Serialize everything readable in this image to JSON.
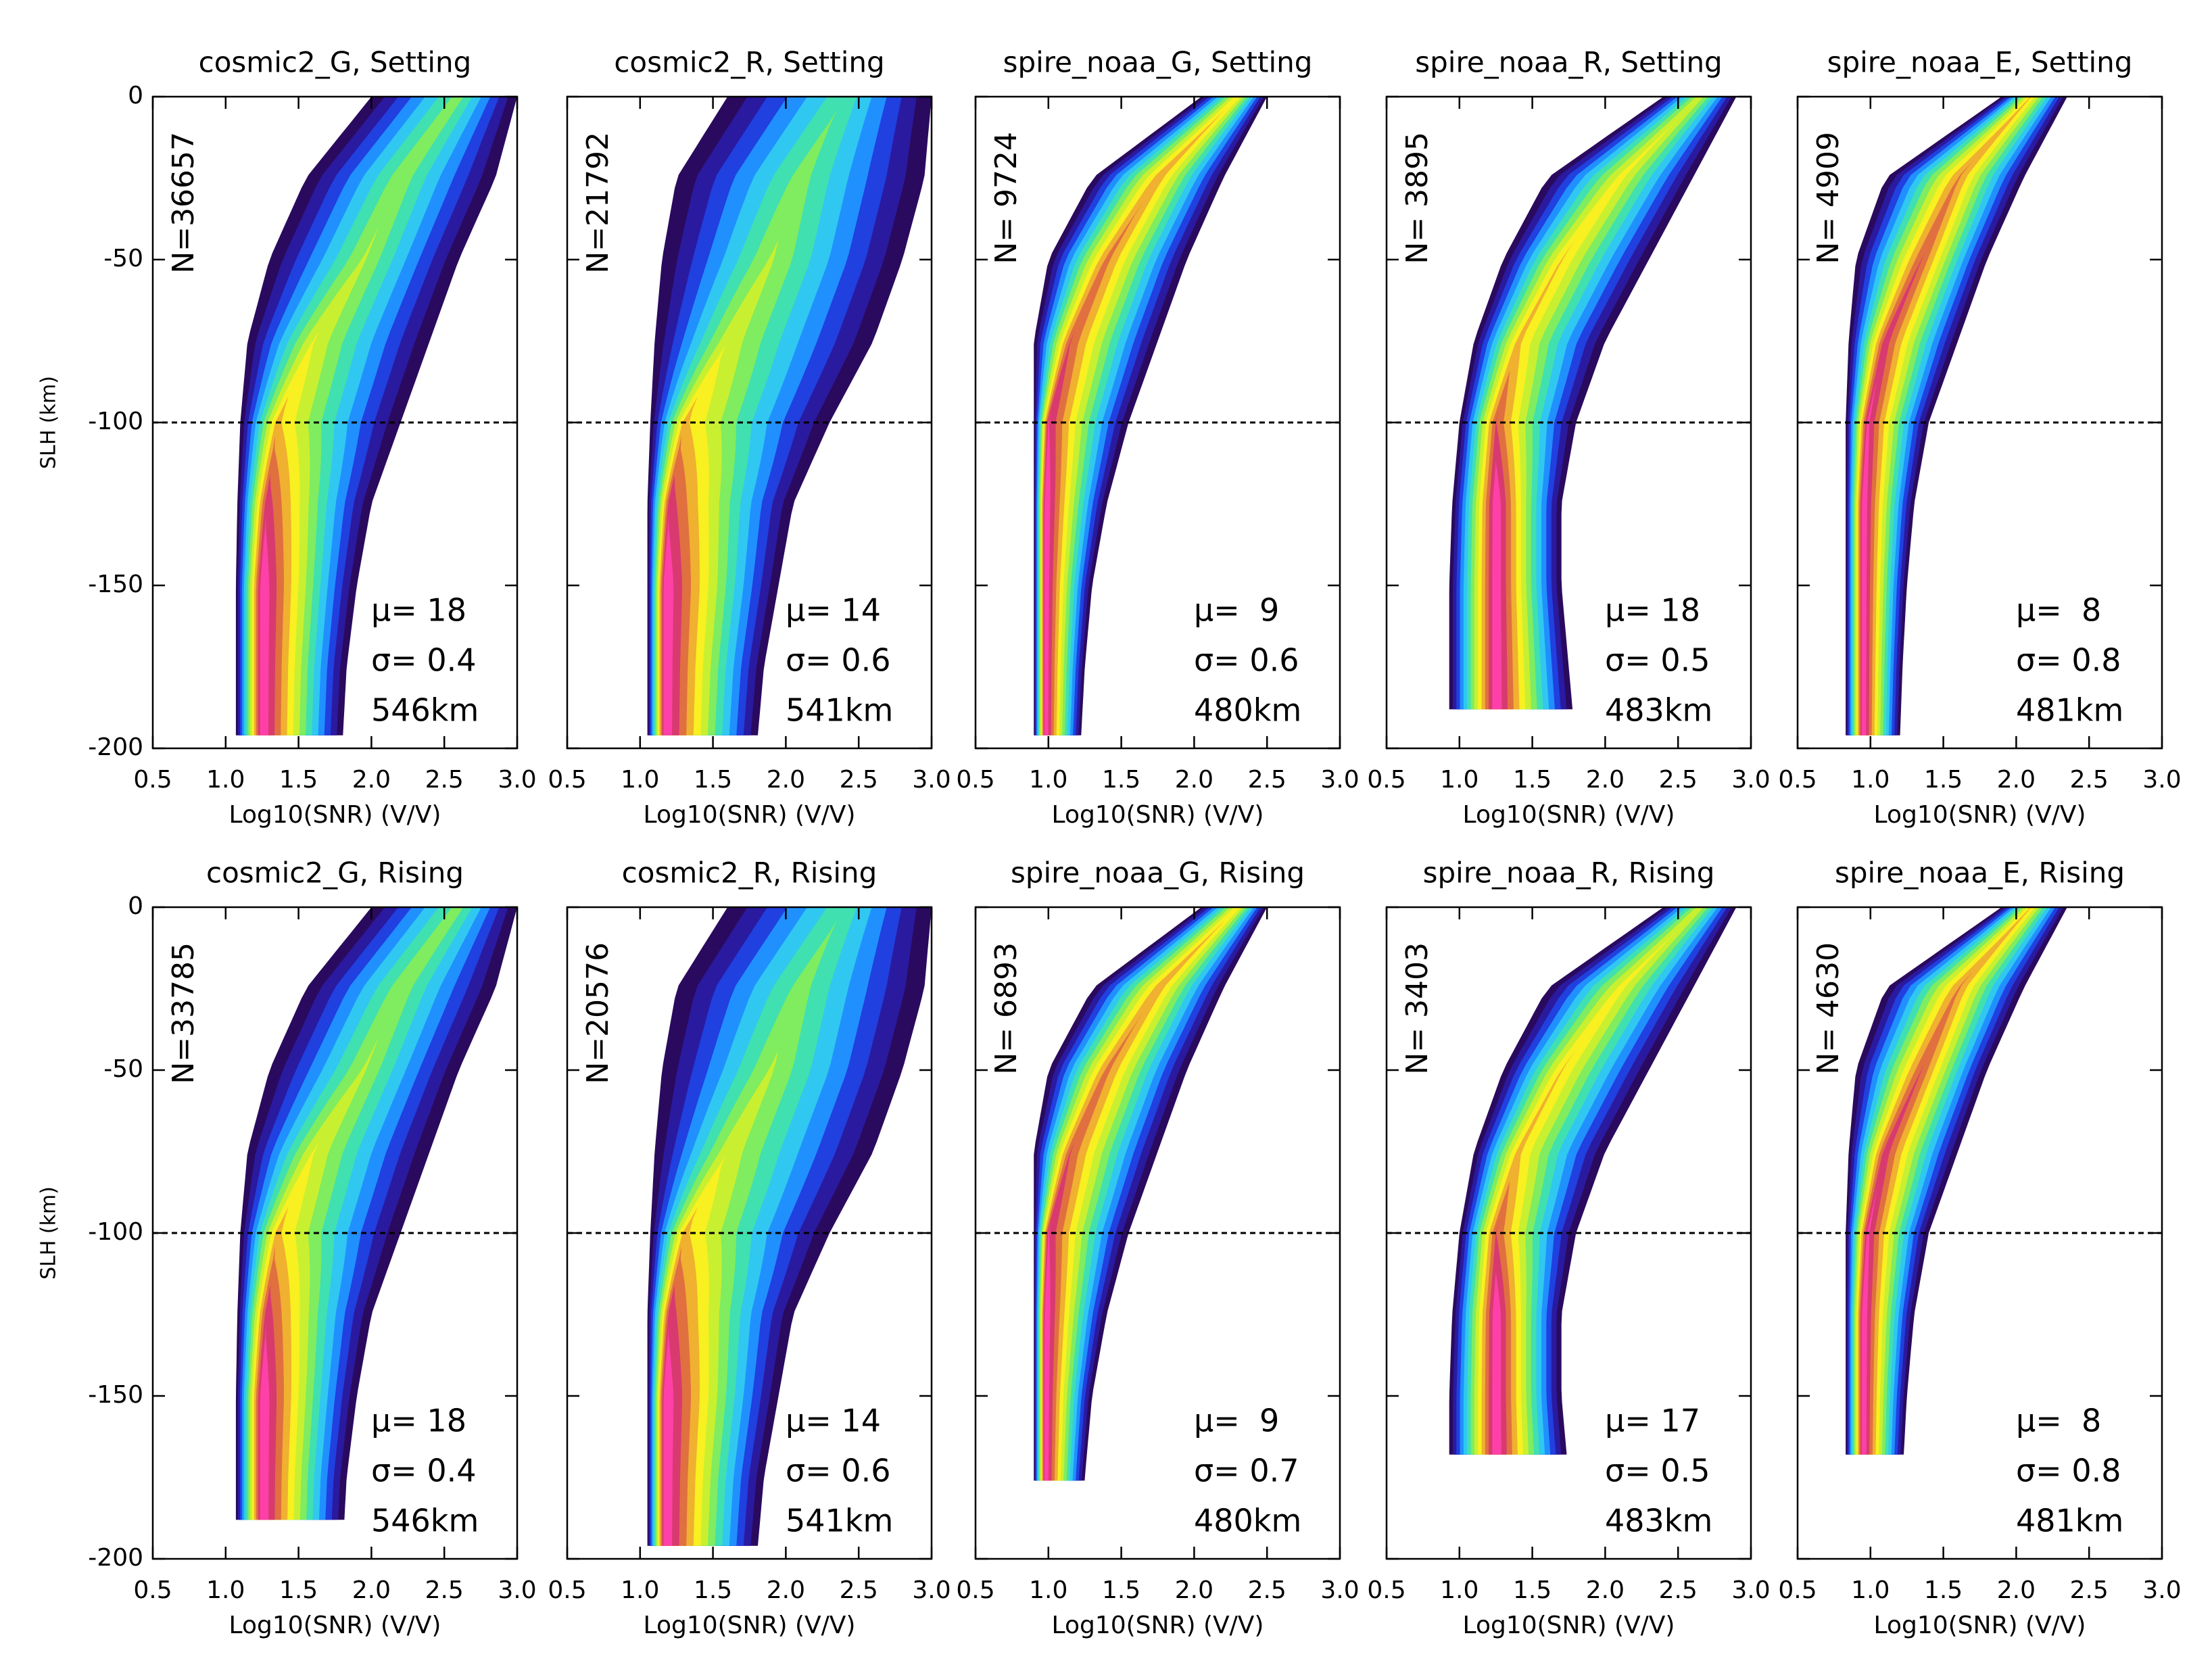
{
  "chart_data": [
    {
      "type": "contour",
      "title": "cosmic2_G, Setting",
      "xlabel": "Log10(SNR) (V/V)",
      "ylabel": "SLH (km)",
      "xlim": [
        0.5,
        3.0
      ],
      "xticks": [
        0.5,
        {
          "value": 1,
          "label": "1.0"
        },
        1.5,
        {
          "value": 2,
          "label": "2.0"
        },
        2.5,
        {
          "value": 3,
          "label": "3.0"
        }
      ],
      "ylim": [
        -200,
        0
      ],
      "yticks": [
        0,
        -50,
        -100,
        -150,
        -200
      ],
      "show_ytick_labels": true,
      "hline": -100,
      "n_label": "N=36657",
      "stats": [
        "μ= 18",
        "σ= 0.4",
        "546km"
      ]
    },
    {
      "type": "contour",
      "title": "cosmic2_R, Setting",
      "xlabel": "Log10(SNR) (V/V)",
      "xlim": [
        0.5,
        3.0
      ],
      "xticks": [
        0.5,
        {
          "value": 1,
          "label": "1.0"
        },
        1.5,
        {
          "value": 2,
          "label": "2.0"
        },
        2.5,
        {
          "value": 3,
          "label": "3.0"
        }
      ],
      "ylim": [
        -200,
        0
      ],
      "yticks": [
        0,
        -50,
        -100,
        -150,
        -200
      ],
      "show_ytick_labels": false,
      "hline": -100,
      "n_label": "N=21792",
      "stats": [
        "μ= 14",
        "σ= 0.6",
        "541km"
      ]
    },
    {
      "type": "contour",
      "title": "spire_noaa_G, Setting",
      "xlabel": "Log10(SNR) (V/V)",
      "xlim": [
        0.5,
        3.0
      ],
      "xticks": [
        0.5,
        {
          "value": 1,
          "label": "1.0"
        },
        1.5,
        {
          "value": 2,
          "label": "2.0"
        },
        2.5,
        {
          "value": 3,
          "label": "3.0"
        }
      ],
      "ylim": [
        -200,
        0
      ],
      "yticks": [
        0,
        -50,
        -100,
        -150,
        -200
      ],
      "show_ytick_labels": false,
      "hline": -100,
      "n_label": "N= 9724",
      "stats": [
        "μ=  9",
        "σ= 0.6",
        "480km"
      ]
    },
    {
      "type": "contour",
      "title": "spire_noaa_R, Setting",
      "xlabel": "Log10(SNR) (V/V)",
      "xlim": [
        0.5,
        3.0
      ],
      "xticks": [
        0.5,
        {
          "value": 1,
          "label": "1.0"
        },
        1.5,
        {
          "value": 2,
          "label": "2.0"
        },
        2.5,
        {
          "value": 3,
          "label": "3.0"
        }
      ],
      "ylim": [
        -200,
        0
      ],
      "yticks": [
        0,
        -50,
        -100,
        -150,
        -200
      ],
      "show_ytick_labels": false,
      "hline": -100,
      "n_label": "N= 3895",
      "stats": [
        "μ= 18",
        "σ= 0.5",
        "483km"
      ]
    },
    {
      "type": "contour",
      "title": "spire_noaa_E, Setting",
      "xlabel": "Log10(SNR) (V/V)",
      "xlim": [
        0.5,
        3.0
      ],
      "xticks": [
        0.5,
        {
          "value": 1,
          "label": "1.0"
        },
        1.5,
        {
          "value": 2,
          "label": "2.0"
        },
        2.5,
        {
          "value": 3,
          "label": "3.0"
        }
      ],
      "ylim": [
        -200,
        0
      ],
      "yticks": [
        0,
        -50,
        -100,
        -150,
        -200
      ],
      "show_ytick_labels": false,
      "hline": -100,
      "n_label": "N= 4909",
      "stats": [
        "μ=  8",
        "σ= 0.8",
        "481km"
      ]
    },
    {
      "type": "contour",
      "title": "cosmic2_G, Rising",
      "xlabel": "Log10(SNR) (V/V)",
      "ylabel": "SLH (km)",
      "xlim": [
        0.5,
        3.0
      ],
      "xticks": [
        0.5,
        {
          "value": 1,
          "label": "1.0"
        },
        1.5,
        {
          "value": 2,
          "label": "2.0"
        },
        2.5,
        {
          "value": 3,
          "label": "3.0"
        }
      ],
      "ylim": [
        -200,
        0
      ],
      "yticks": [
        0,
        -50,
        -100,
        -150,
        -200
      ],
      "show_ytick_labels": true,
      "hline": -100,
      "n_label": "N=33785",
      "stats": [
        "μ= 18",
        "σ= 0.4",
        "546km"
      ]
    },
    {
      "type": "contour",
      "title": "cosmic2_R, Rising",
      "xlabel": "Log10(SNR) (V/V)",
      "xlim": [
        0.5,
        3.0
      ],
      "xticks": [
        0.5,
        {
          "value": 1,
          "label": "1.0"
        },
        1.5,
        {
          "value": 2,
          "label": "2.0"
        },
        2.5,
        {
          "value": 3,
          "label": "3.0"
        }
      ],
      "ylim": [
        -200,
        0
      ],
      "yticks": [
        0,
        -50,
        -100,
        -150,
        -200
      ],
      "show_ytick_labels": false,
      "hline": -100,
      "n_label": "N=20576",
      "stats": [
        "μ= 14",
        "σ= 0.6",
        "541km"
      ]
    },
    {
      "type": "contour",
      "title": "spire_noaa_G, Rising",
      "xlabel": "Log10(SNR) (V/V)",
      "xlim": [
        0.5,
        3.0
      ],
      "xticks": [
        0.5,
        {
          "value": 1,
          "label": "1.0"
        },
        1.5,
        {
          "value": 2,
          "label": "2.0"
        },
        2.5,
        {
          "value": 3,
          "label": "3.0"
        }
      ],
      "ylim": [
        -200,
        0
      ],
      "yticks": [
        0,
        -50,
        -100,
        -150,
        -200
      ],
      "show_ytick_labels": false,
      "hline": -100,
      "n_label": "N= 6893",
      "stats": [
        "μ=  9",
        "σ= 0.7",
        "480km"
      ]
    },
    {
      "type": "contour",
      "title": "spire_noaa_R, Rising",
      "xlabel": "Log10(SNR) (V/V)",
      "xlim": [
        0.5,
        3.0
      ],
      "xticks": [
        0.5,
        {
          "value": 1,
          "label": "1.0"
        },
        1.5,
        {
          "value": 2,
          "label": "2.0"
        },
        2.5,
        {
          "value": 3,
          "label": "3.0"
        }
      ],
      "ylim": [
        -200,
        0
      ],
      "yticks": [
        0,
        -50,
        -100,
        -150,
        -200
      ],
      "show_ytick_labels": false,
      "hline": -100,
      "n_label": "N= 3403",
      "stats": [
        "μ= 17",
        "σ= 0.5",
        "483km"
      ]
    },
    {
      "type": "contour",
      "title": "spire_noaa_E, Rising",
      "xlabel": "Log10(SNR) (V/V)",
      "xlim": [
        0.5,
        3.0
      ],
      "xticks": [
        0.5,
        {
          "value": 1,
          "label": "1.0"
        },
        1.5,
        {
          "value": 2,
          "label": "2.0"
        },
        2.5,
        {
          "value": 3,
          "label": "3.0"
        }
      ],
      "ylim": [
        -200,
        0
      ],
      "yticks": [
        0,
        -50,
        -100,
        -150,
        -200
      ],
      "show_ytick_labels": false,
      "hline": -100,
      "n_label": "N= 4630",
      "stats": [
        "μ=  8",
        "σ= 0.8",
        "481km"
      ]
    }
  ]
}
